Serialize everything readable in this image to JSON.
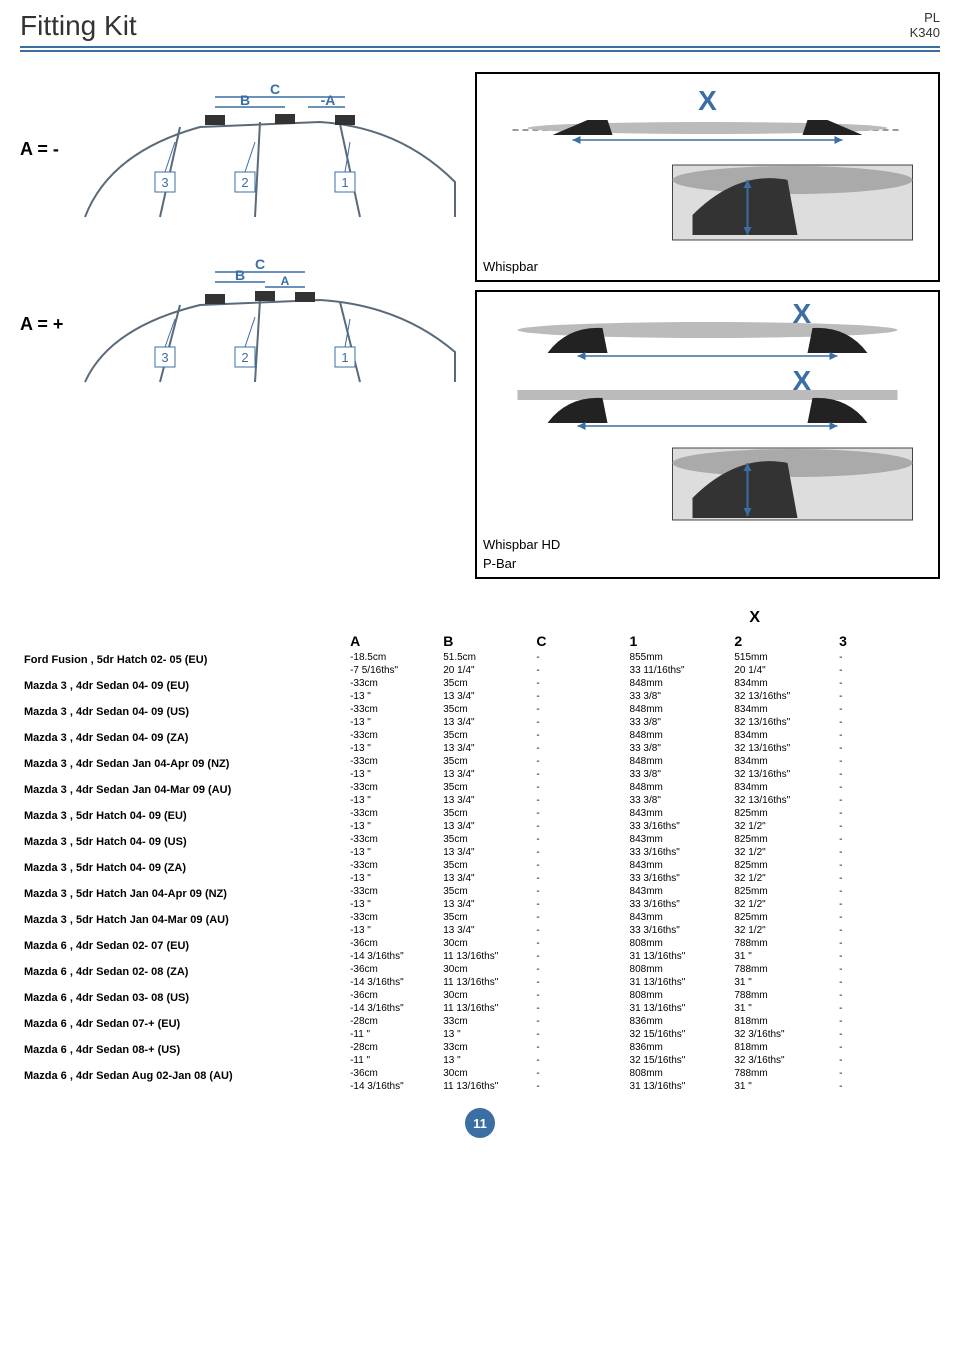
{
  "header": {
    "title": "Fitting Kit",
    "code1": "PL",
    "code2": "K340"
  },
  "labels": {
    "a_neg": "A = -",
    "a_pos": "A = +",
    "whispbar": "Whispbar",
    "whispbar_hd": "Whispbar HD",
    "pbar": "P-Bar",
    "xcol": "X"
  },
  "columns": [
    "A",
    "B",
    "C",
    "1",
    "2",
    "3"
  ],
  "rows": [
    {
      "model": "Ford Fusion , 5dr Hatch  02- 05 (EU)",
      "m": [
        "-18.5cm",
        "51.5cm",
        "-",
        "855mm",
        "515mm",
        "-"
      ],
      "i": [
        "-7 5/16ths\"",
        "20 1/4\"",
        "-",
        "33 11/16ths\"",
        "20 1/4\"",
        "-"
      ]
    },
    {
      "model": "Mazda 3 , 4dr Sedan  04- 09 (EU)",
      "m": [
        "-33cm",
        "35cm",
        "-",
        "848mm",
        "834mm",
        "-"
      ],
      "i": [
        "-13 \"",
        "13 3/4\"",
        "-",
        "33 3/8\"",
        "32 13/16ths\"",
        "-"
      ]
    },
    {
      "model": "Mazda 3 , 4dr Sedan  04- 09 (US)",
      "m": [
        "-33cm",
        "35cm",
        "-",
        "848mm",
        "834mm",
        "-"
      ],
      "i": [
        "-13 \"",
        "13 3/4\"",
        "-",
        "33 3/8\"",
        "32 13/16ths\"",
        "-"
      ]
    },
    {
      "model": "Mazda 3 , 4dr Sedan  04- 09 (ZA)",
      "m": [
        "-33cm",
        "35cm",
        "-",
        "848mm",
        "834mm",
        "-"
      ],
      "i": [
        "-13 \"",
        "13 3/4\"",
        "-",
        "33 3/8\"",
        "32 13/16ths\"",
        "-"
      ]
    },
    {
      "model": "Mazda 3 , 4dr Sedan Jan 04-Apr 09 (NZ)",
      "m": [
        "-33cm",
        "35cm",
        "-",
        "848mm",
        "834mm",
        "-"
      ],
      "i": [
        "-13 \"",
        "13 3/4\"",
        "-",
        "33 3/8\"",
        "32 13/16ths\"",
        "-"
      ]
    },
    {
      "model": "Mazda 3 , 4dr Sedan Jan 04-Mar 09 (AU)",
      "m": [
        "-33cm",
        "35cm",
        "-",
        "848mm",
        "834mm",
        "-"
      ],
      "i": [
        "-13 \"",
        "13 3/4\"",
        "-",
        "33 3/8\"",
        "32 13/16ths\"",
        "-"
      ]
    },
    {
      "model": "Mazda 3 , 5dr Hatch  04- 09 (EU)",
      "m": [
        "-33cm",
        "35cm",
        "-",
        "843mm",
        "825mm",
        "-"
      ],
      "i": [
        "-13 \"",
        "13 3/4\"",
        "-",
        "33 3/16ths\"",
        "32 1/2\"",
        "-"
      ]
    },
    {
      "model": "Mazda 3 , 5dr Hatch  04- 09 (US)",
      "m": [
        "-33cm",
        "35cm",
        "-",
        "843mm",
        "825mm",
        "-"
      ],
      "i": [
        "-13 \"",
        "13 3/4\"",
        "-",
        "33 3/16ths\"",
        "32 1/2\"",
        "-"
      ]
    },
    {
      "model": "Mazda 3 , 5dr Hatch  04- 09 (ZA)",
      "m": [
        "-33cm",
        "35cm",
        "-",
        "843mm",
        "825mm",
        "-"
      ],
      "i": [
        "-13 \"",
        "13 3/4\"",
        "-",
        "33 3/16ths\"",
        "32 1/2\"",
        "-"
      ]
    },
    {
      "model": "Mazda 3 , 5dr Hatch Jan 04-Apr 09 (NZ)",
      "m": [
        "-33cm",
        "35cm",
        "-",
        "843mm",
        "825mm",
        "-"
      ],
      "i": [
        "-13 \"",
        "13 3/4\"",
        "-",
        "33 3/16ths\"",
        "32 1/2\"",
        "-"
      ]
    },
    {
      "model": "Mazda 3 , 5dr Hatch Jan 04-Mar 09 (AU)",
      "m": [
        "-33cm",
        "35cm",
        "-",
        "843mm",
        "825mm",
        "-"
      ],
      "i": [
        "-13 \"",
        "13 3/4\"",
        "-",
        "33 3/16ths\"",
        "32 1/2\"",
        "-"
      ]
    },
    {
      "model": "Mazda 6 , 4dr Sedan  02- 07 (EU)",
      "m": [
        "-36cm",
        "30cm",
        "-",
        "808mm",
        "788mm",
        "-"
      ],
      "i": [
        "-14 3/16ths\"",
        "11 13/16ths\"",
        "-",
        "31 13/16ths\"",
        "31 \"",
        "-"
      ]
    },
    {
      "model": "Mazda 6 , 4dr Sedan  02- 08 (ZA)",
      "m": [
        "-36cm",
        "30cm",
        "-",
        "808mm",
        "788mm",
        "-"
      ],
      "i": [
        "-14 3/16ths\"",
        "11 13/16ths\"",
        "-",
        "31 13/16ths\"",
        "31 \"",
        "-"
      ]
    },
    {
      "model": "Mazda 6 , 4dr Sedan  03- 08 (US)",
      "m": [
        "-36cm",
        "30cm",
        "-",
        "808mm",
        "788mm",
        "-"
      ],
      "i": [
        "-14 3/16ths\"",
        "11 13/16ths\"",
        "-",
        "31 13/16ths\"",
        "31 \"",
        "-"
      ]
    },
    {
      "model": "Mazda 6 , 4dr Sedan  07-+ (EU)",
      "m": [
        "-28cm",
        "33cm",
        "-",
        "836mm",
        "818mm",
        "-"
      ],
      "i": [
        "-11 \"",
        "13 \"",
        "-",
        "32 15/16ths\"",
        "32 3/16ths\"",
        "-"
      ]
    },
    {
      "model": "Mazda 6 , 4dr Sedan  08-+ (US)",
      "m": [
        "-28cm",
        "33cm",
        "-",
        "836mm",
        "818mm",
        "-"
      ],
      "i": [
        "-11 \"",
        "13 \"",
        "-",
        "32 15/16ths\"",
        "32 3/16ths\"",
        "-"
      ]
    },
    {
      "model": "Mazda 6 , 4dr Sedan Aug 02-Jan 08 (AU)",
      "m": [
        "-36cm",
        "30cm",
        "-",
        "808mm",
        "788mm",
        "-"
      ],
      "i": [
        "-14 3/16ths\"",
        "11 13/16ths\"",
        "-",
        "31 13/16ths\"",
        "31 \"",
        "-"
      ]
    }
  ],
  "pagenum": "11"
}
